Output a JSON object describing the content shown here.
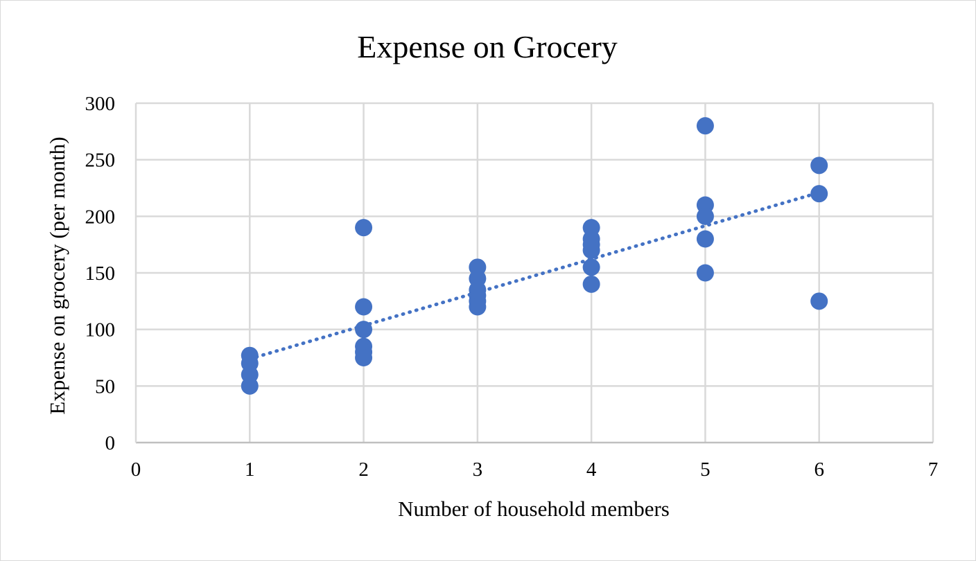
{
  "chart_data": {
    "type": "scatter",
    "title": "Expense on Grocery",
    "xlabel": "Number of household members",
    "ylabel": "Expense on grocery (per month)",
    "xlim": [
      0,
      7
    ],
    "ylim": [
      0,
      300
    ],
    "x_ticks": [
      "0",
      "1",
      "2",
      "3",
      "4",
      "5",
      "6",
      "7"
    ],
    "y_ticks": [
      "0",
      "50",
      "100",
      "150",
      "200",
      "250",
      "300"
    ],
    "grid": true,
    "legend": "none",
    "marker_color": "#4472C4",
    "trendline": {
      "type": "linear",
      "style": "dotted",
      "color": "#4472C4",
      "x": [
        1,
        6
      ],
      "y": [
        74,
        221
      ]
    },
    "points": [
      {
        "x": 1,
        "y": 77
      },
      {
        "x": 1,
        "y": 70
      },
      {
        "x": 1,
        "y": 60
      },
      {
        "x": 1,
        "y": 50
      },
      {
        "x": 2,
        "y": 190
      },
      {
        "x": 2,
        "y": 120
      },
      {
        "x": 2,
        "y": 100
      },
      {
        "x": 2,
        "y": 85
      },
      {
        "x": 2,
        "y": 80
      },
      {
        "x": 2,
        "y": 75
      },
      {
        "x": 3,
        "y": 155
      },
      {
        "x": 3,
        "y": 145
      },
      {
        "x": 3,
        "y": 135
      },
      {
        "x": 3,
        "y": 130
      },
      {
        "x": 3,
        "y": 125
      },
      {
        "x": 3,
        "y": 120
      },
      {
        "x": 4,
        "y": 190
      },
      {
        "x": 4,
        "y": 180
      },
      {
        "x": 4,
        "y": 175
      },
      {
        "x": 4,
        "y": 170
      },
      {
        "x": 4,
        "y": 155
      },
      {
        "x": 4,
        "y": 140
      },
      {
        "x": 5,
        "y": 280
      },
      {
        "x": 5,
        "y": 210
      },
      {
        "x": 5,
        "y": 200
      },
      {
        "x": 5,
        "y": 180
      },
      {
        "x": 5,
        "y": 150
      },
      {
        "x": 6,
        "y": 245
      },
      {
        "x": 6,
        "y": 220
      },
      {
        "x": 6,
        "y": 125
      }
    ]
  }
}
